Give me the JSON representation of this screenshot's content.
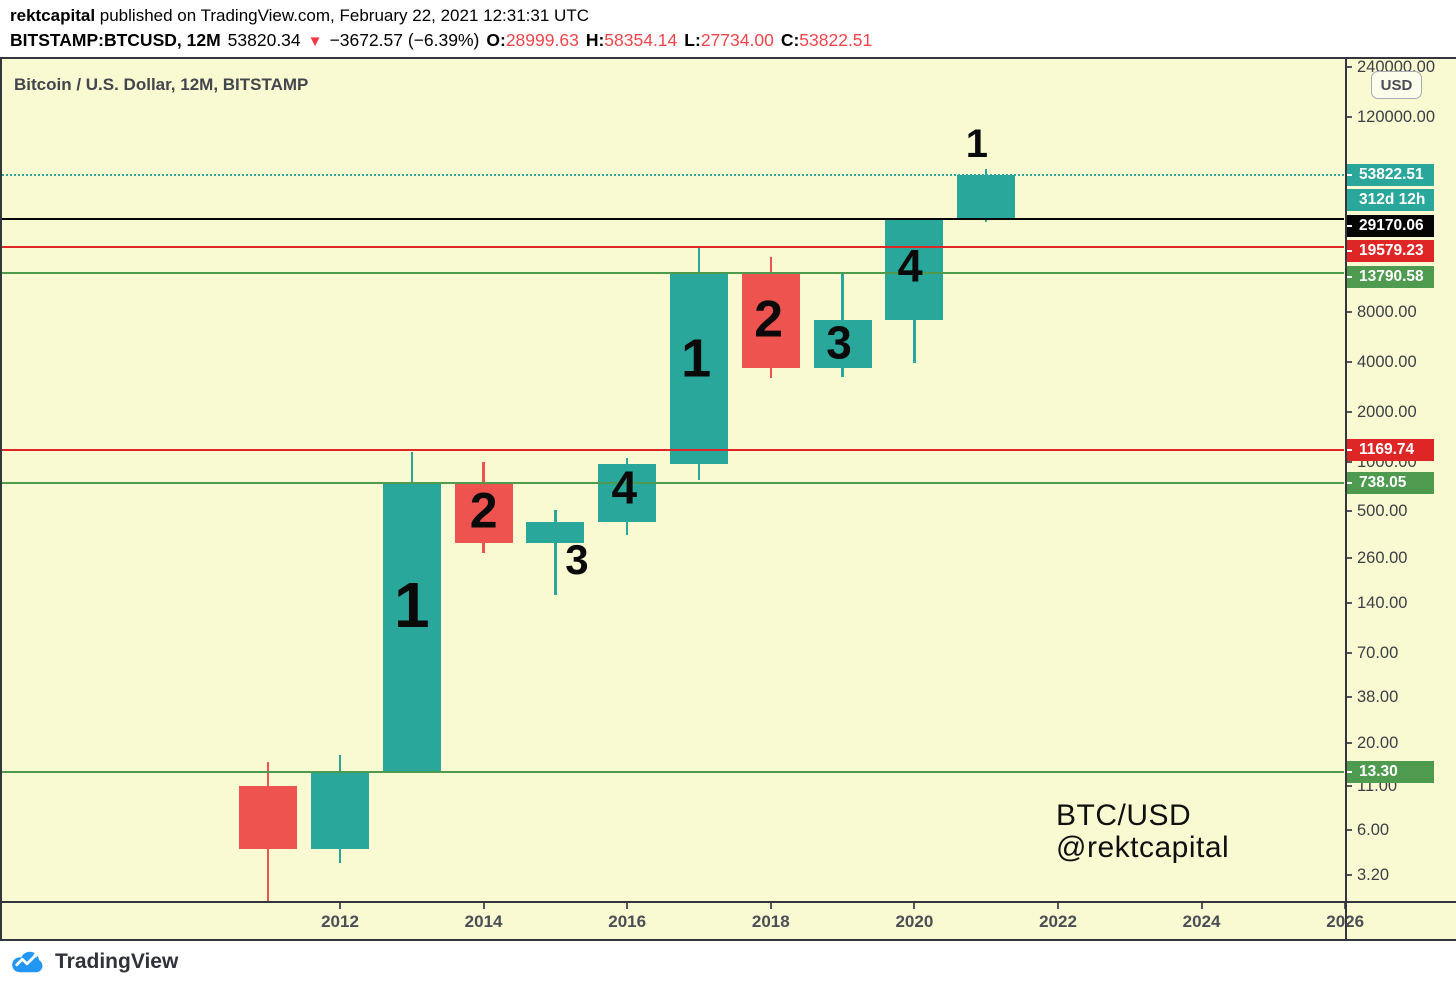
{
  "header": {
    "author": "rektcapital",
    "published": " published on TradingView.com, February 22, 2021 12:31:31 UTC",
    "symbol": "BITSTAMP:BTCUSD, 12M",
    "last_price": "53820.34",
    "direction_icon": "▼",
    "change": "−3672.57 (−6.39%)",
    "ohlc": [
      {
        "label": "O:",
        "value": "28999.63"
      },
      {
        "label": "H:",
        "value": "58354.14"
      },
      {
        "label": "L:",
        "value": "27734.00"
      },
      {
        "label": "C:",
        "value": "53822.51"
      }
    ]
  },
  "chart": {
    "title": "Bitcoin / U.S. Dollar, 12M, BITSTAMP",
    "usd_button_label": "USD",
    "watermark": [
      "BTC/USD",
      "@rektcapital"
    ],
    "countdown_badge": "312d 12h"
  },
  "footer": {
    "brand": "TradingView"
  },
  "colors": {
    "chart_bg": "#FAFAD2",
    "bull": "#2AA79B",
    "bear": "#EF5350",
    "level_teal": "#2AA79B",
    "level_black": "#050505",
    "level_red": "#DF2626",
    "level_green": "#4E9B50",
    "badge_text": "#FFFFFF",
    "logo_blue": "#2196F3"
  },
  "chart_data": {
    "type": "candlestick",
    "title": "Bitcoin / U.S. Dollar, 12M, BITSTAMP",
    "scale": "log",
    "x_unit": "year",
    "candles": [
      {
        "year": 2011,
        "open": 11.0,
        "high": 15.4,
        "low": 2.2,
        "close": 4.6
      },
      {
        "year": 2012,
        "open": 4.6,
        "high": 16.9,
        "low": 3.8,
        "close": 13.3
      },
      {
        "year": 2013,
        "open": 13.3,
        "high": 1141,
        "low": 13.2,
        "close": 738
      },
      {
        "year": 2014,
        "open": 738,
        "high": 993,
        "low": 280,
        "close": 322
      },
      {
        "year": 2015,
        "open": 322,
        "high": 509,
        "low": 157,
        "close": 430
      },
      {
        "year": 2016,
        "open": 430,
        "high": 1050,
        "low": 360,
        "close": 970
      },
      {
        "year": 2017,
        "open": 970,
        "high": 19580,
        "low": 770,
        "close": 13790
      },
      {
        "year": 2018,
        "open": 13790,
        "high": 17150,
        "low": 3190,
        "close": 3670
      },
      {
        "year": 2019,
        "open": 3670,
        "high": 13790,
        "low": 3240,
        "close": 7150
      },
      {
        "year": 2020,
        "open": 7150,
        "high": 29170,
        "low": 3930,
        "close": 29170
      },
      {
        "year": 2021,
        "open": 28999.63,
        "high": 58354.14,
        "low": 27734.0,
        "close": 53822.51
      }
    ],
    "levels": [
      {
        "price": 53822.51,
        "label": "53822.51",
        "style": "dotted",
        "color_key": "level_teal",
        "stack": true
      },
      {
        "price": 29170.06,
        "label": "29170.06",
        "style": "solid",
        "color_key": "level_black",
        "stack": true
      },
      {
        "price": 19579.23,
        "label": "19579.23",
        "style": "solid",
        "color_key": "level_red",
        "stack": true
      },
      {
        "price": 13790.58,
        "label": "13790.58",
        "style": "solid",
        "color_key": "level_green",
        "stack": true
      },
      {
        "price": 1169.74,
        "label": "1169.74",
        "style": "solid",
        "color_key": "level_red",
        "stack": false
      },
      {
        "price": 738.05,
        "label": "738.05",
        "style": "solid",
        "color_key": "level_green",
        "stack": false
      },
      {
        "price": 13.3,
        "label": "13.30",
        "style": "solid",
        "color_key": "level_green",
        "stack": false
      }
    ],
    "annotations": [
      {
        "text": "1",
        "year": 2013.0,
        "price": 131,
        "size": 64
      },
      {
        "text": "2",
        "year": 2014.0,
        "price": 490,
        "size": 50
      },
      {
        "text": "3",
        "year": 2015.3,
        "price": 248,
        "size": 42
      },
      {
        "text": "4",
        "year": 2015.96,
        "price": 673,
        "size": 46
      },
      {
        "text": "1",
        "year": 2016.96,
        "price": 4040,
        "size": 54
      },
      {
        "text": "2",
        "year": 2017.97,
        "price": 6950,
        "size": 52
      },
      {
        "text": "3",
        "year": 2018.95,
        "price": 5050,
        "size": 46
      },
      {
        "text": "4",
        "year": 2019.94,
        "price": 14700,
        "size": 45
      },
      {
        "text": "1",
        "year": 2020.87,
        "price": 80200,
        "size": 40
      }
    ],
    "y_axis": {
      "unit": "USD",
      "ticks": [
        {
          "v": 240000,
          "label": "240000.00"
        },
        {
          "v": 120000,
          "label": "120000.00"
        },
        {
          "v": 8000,
          "label": "8000.00"
        },
        {
          "v": 4000,
          "label": "4000.00"
        },
        {
          "v": 2000,
          "label": "2000.00"
        },
        {
          "v": 1000,
          "label": "1000.00"
        },
        {
          "v": 500,
          "label": "500.00"
        },
        {
          "v": 260,
          "label": "260.00"
        },
        {
          "v": 140,
          "label": "140.00"
        },
        {
          "v": 70,
          "label": "70.00"
        },
        {
          "v": 38,
          "label": "38.00"
        },
        {
          "v": 20,
          "label": "20.00"
        },
        {
          "v": 11,
          "label": "11.00"
        },
        {
          "v": 6,
          "label": "6.00"
        },
        {
          "v": 3.2,
          "label": "3.20"
        }
      ]
    },
    "x_axis": {
      "ticks": [
        {
          "v": 2012,
          "label": "2012"
        },
        {
          "v": 2014,
          "label": "2014"
        },
        {
          "v": 2016,
          "label": "2016"
        },
        {
          "v": 2018,
          "label": "2018"
        },
        {
          "v": 2020,
          "label": "2020"
        },
        {
          "v": 2022,
          "label": "2022"
        },
        {
          "v": 2024,
          "label": "2024"
        },
        {
          "v": 2026,
          "label": "2026"
        }
      ]
    }
  }
}
